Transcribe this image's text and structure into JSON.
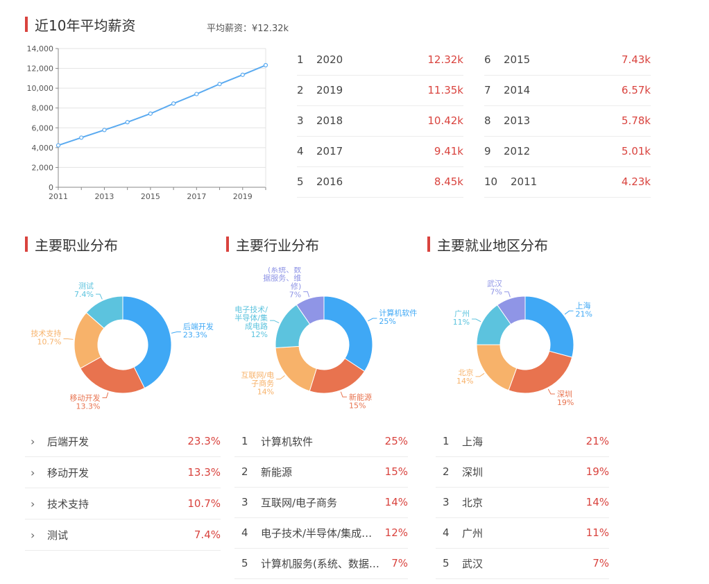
{
  "salary": {
    "title": "近10年平均薪资",
    "avg_note": "平均薪资：¥12.32k",
    "ranking": [
      {
        "rank": "1",
        "year": "2020",
        "value": "12.32k"
      },
      {
        "rank": "2",
        "year": "2019",
        "value": "11.35k"
      },
      {
        "rank": "3",
        "year": "2018",
        "value": "10.42k"
      },
      {
        "rank": "4",
        "year": "2017",
        "value": "9.41k"
      },
      {
        "rank": "5",
        "year": "2016",
        "value": "8.45k"
      },
      {
        "rank": "6",
        "year": "2015",
        "value": "7.43k"
      },
      {
        "rank": "7",
        "year": "2014",
        "value": "6.57k"
      },
      {
        "rank": "8",
        "year": "2013",
        "value": "5.78k"
      },
      {
        "rank": "9",
        "year": "2012",
        "value": "5.01k"
      },
      {
        "rank": "10",
        "year": "2011",
        "value": "4.23k"
      }
    ]
  },
  "jobs": {
    "title": "主要职业分布",
    "list": [
      {
        "label": "后端开发",
        "value": "23.3%"
      },
      {
        "label": "移动开发",
        "value": "13.3%"
      },
      {
        "label": "技术支持",
        "value": "10.7%"
      },
      {
        "label": "测试",
        "value": "7.4%"
      }
    ]
  },
  "industry": {
    "title": "主要行业分布",
    "list": [
      {
        "rank": "1",
        "label": "计算机软件",
        "value": "25%"
      },
      {
        "rank": "2",
        "label": "新能源",
        "value": "15%"
      },
      {
        "rank": "3",
        "label": "互联网/电子商务",
        "value": "14%"
      },
      {
        "rank": "4",
        "label": "电子技术/半导体/集成电路",
        "value": "12%"
      },
      {
        "rank": "5",
        "label": "计算机服务(系统、数据服务、维修)",
        "value": "7%"
      }
    ]
  },
  "region": {
    "title": "主要就业地区分布",
    "list": [
      {
        "rank": "1",
        "label": "上海",
        "value": "21%"
      },
      {
        "rank": "2",
        "label": "深圳",
        "value": "19%"
      },
      {
        "rank": "3",
        "label": "北京",
        "value": "14%"
      },
      {
        "rank": "4",
        "label": "广州",
        "value": "11%"
      },
      {
        "rank": "5",
        "label": "武汉",
        "value": "7%"
      }
    ]
  },
  "colors": {
    "accent": "#d9433e",
    "line": "#5aaaf0",
    "slice1": "#3fa8f5",
    "slice2": "#e8734f",
    "slice3": "#f7b26a",
    "slice4": "#5cc3de",
    "slice5": "#8f95e6"
  },
  "chart_data": [
    {
      "type": "line",
      "x": [
        2011,
        2012,
        2013,
        2014,
        2015,
        2016,
        2017,
        2018,
        2019,
        2020
      ],
      "values": [
        4230,
        5010,
        5780,
        6570,
        7430,
        8450,
        9410,
        10420,
        11350,
        12320
      ],
      "xticks": [
        "2011",
        "2013",
        "2015",
        "2017",
        "2019"
      ],
      "yticks": [
        "0",
        "2,000",
        "4,000",
        "6,000",
        "8,000",
        "10,000",
        "12,000",
        "14,000"
      ],
      "ylim": [
        0,
        14000
      ],
      "xlim": [
        2011,
        2020
      ],
      "grid": true
    },
    {
      "type": "pie",
      "labels": [
        "后端开发",
        "移动开发",
        "技术支持",
        "测试"
      ],
      "values": [
        23.3,
        13.3,
        10.7,
        7.4
      ],
      "value_labels": [
        "23.3%",
        "13.3%",
        "10.7%",
        "7.4%"
      ]
    },
    {
      "type": "pie",
      "labels": [
        "计算机软件",
        "新能源",
        "互联网/电子商务",
        "电子技术/半导体/集成电路",
        "计算机服务(系统、数据服务、维修)"
      ],
      "values": [
        25,
        15,
        14,
        12,
        7
      ],
      "value_labels": [
        "25%",
        "15%",
        "14%",
        "12%",
        "7%"
      ]
    },
    {
      "type": "pie",
      "labels": [
        "上海",
        "深圳",
        "北京",
        "广州",
        "武汉"
      ],
      "values": [
        21,
        19,
        14,
        11,
        7
      ],
      "value_labels": [
        "21%",
        "19%",
        "14%",
        "11%",
        "7%"
      ]
    }
  ]
}
